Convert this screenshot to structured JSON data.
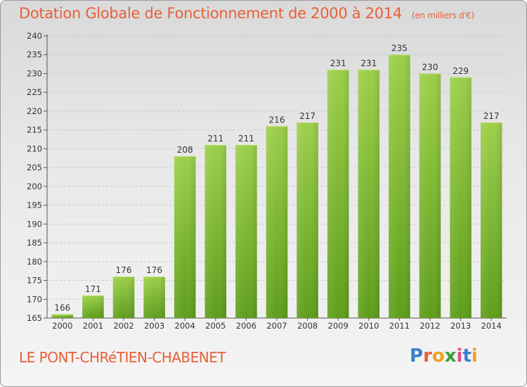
{
  "title": "Dotation Globale de Fonctionnement de 2000 à 2014",
  "unit_note": "(en milliers d'€)",
  "subject": "LE PONT-CHRéTIEN-CHABENET",
  "logo": {
    "letters": [
      "P",
      "r",
      "o",
      "x",
      "i",
      "t",
      "i"
    ],
    "colors": [
      "#3a7fd0",
      "#e8603a",
      "#f0a020",
      "#3aa03a",
      "#e84a8a",
      "#3a7fd0",
      "#f0a020"
    ]
  },
  "chart_data": {
    "type": "bar",
    "title": "Dotation Globale de Fonctionnement de 2000 à 2014",
    "ylabel": "en milliers d'€",
    "xlabel": "",
    "categories": [
      "2000",
      "2001",
      "2002",
      "2003",
      "2004",
      "2005",
      "2006",
      "2007",
      "2008",
      "2009",
      "2010",
      "2011",
      "2012",
      "2013",
      "2014"
    ],
    "values": [
      166,
      171,
      176,
      176,
      208,
      211,
      211,
      216,
      217,
      231,
      231,
      235,
      230,
      229,
      217
    ],
    "ylim": [
      165,
      240
    ],
    "ytick_step": 5,
    "grid": true,
    "bar_color_top": "#9ccf4a",
    "bar_color_bottom": "#5e9e1a"
  }
}
